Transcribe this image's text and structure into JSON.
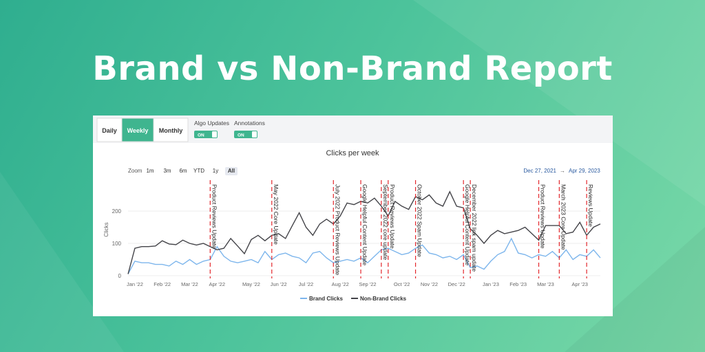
{
  "header": {
    "title": "Brand vs Non-Brand Report"
  },
  "ui": {
    "tabs": [
      "Daily",
      "Weekly",
      "Monthly"
    ],
    "active_tab": 1,
    "toggles": [
      {
        "label": "Algo Updates",
        "state": "ON"
      },
      {
        "label": "Annotations",
        "state": "ON"
      }
    ],
    "zoom_label": "Zoom",
    "zoom_buttons": [
      "1m",
      "3m",
      "6m",
      "YTD",
      "1y",
      "All"
    ],
    "zoom_selected": 5,
    "range_start": "Dec 27, 2021",
    "range_arrow": "→",
    "range_end": "Apr 29, 2023"
  },
  "chart_data": {
    "type": "line",
    "title": "Clicks per week",
    "y_label": "Clicks",
    "categories": [
      null,
      "Jan '22",
      null,
      null,
      null,
      "Feb '22",
      null,
      null,
      null,
      "Mar '22",
      null,
      null,
      null,
      "Apr '22",
      null,
      null,
      null,
      null,
      "May '22",
      null,
      null,
      null,
      "Jun '22",
      null,
      null,
      null,
      "Jul '22",
      null,
      null,
      null,
      null,
      "Aug '22",
      null,
      null,
      null,
      "Sep '22",
      null,
      null,
      null,
      null,
      "Oct '22",
      null,
      null,
      null,
      "Nov '22",
      null,
      null,
      null,
      "Dec '22",
      null,
      null,
      null,
      null,
      "Jan '23",
      null,
      null,
      null,
      "Feb '23",
      null,
      null,
      null,
      "Mar '23",
      null,
      null,
      null,
      null,
      "Apr '23",
      null,
      null,
      null
    ],
    "series": [
      {
        "name": "Brand Clicks",
        "color": "#7cb5ec",
        "values": [
          5,
          45,
          40,
          40,
          35,
          35,
          30,
          45,
          35,
          50,
          35,
          45,
          50,
          90,
          60,
          45,
          40,
          45,
          50,
          40,
          75,
          50,
          65,
          70,
          60,
          55,
          40,
          70,
          75,
          55,
          40,
          45,
          50,
          45,
          55,
          40,
          60,
          80,
          85,
          75,
          65,
          70,
          85,
          95,
          70,
          65,
          55,
          60,
          50,
          65,
          25,
          30,
          20,
          45,
          65,
          75,
          115,
          70,
          65,
          55,
          65,
          60,
          75,
          55,
          80,
          50,
          65,
          60,
          80,
          55
        ]
      },
      {
        "name": "Non-Brand Clicks",
        "color": "#434348",
        "values": [
          5,
          85,
          90,
          90,
          92,
          108,
          98,
          96,
          110,
          100,
          95,
          100,
          90,
          80,
          85,
          115,
          92,
          68,
          112,
          125,
          108,
          125,
          130,
          115,
          155,
          195,
          150,
          125,
          160,
          175,
          160,
          185,
          225,
          220,
          230,
          225,
          240,
          215,
          185,
          230,
          215,
          205,
          245,
          235,
          250,
          225,
          215,
          260,
          215,
          210,
          145,
          125,
          100,
          125,
          140,
          130,
          135,
          140,
          150,
          130,
          110,
          155,
          155,
          155,
          130,
          135,
          165,
          125,
          150,
          160
        ]
      }
    ],
    "annotations": [
      {
        "label": "Product Reviews Update",
        "at": 12
      },
      {
        "label": "May 2022 Core Update",
        "at": 21
      },
      {
        "label": "July 2022 Product Reviews Update",
        "at": 30
      },
      {
        "label": "Google Helpful Content Update",
        "at": 34
      },
      {
        "label": "September 2022 core update",
        "at": 37
      },
      {
        "label": "Product Reviews Update",
        "at": 38
      },
      {
        "label": "October 2022 Spam Update",
        "at": 42
      },
      {
        "label": "Google Helpful Content Update",
        "at": 49
      },
      {
        "label": "December 2022 link spam update",
        "at": 50
      },
      {
        "label": "Product Reviews Update",
        "at": 60
      },
      {
        "label": "March 2023 Core Update",
        "at": 63
      },
      {
        "label": "Reviews Update",
        "at": 67
      }
    ],
    "ylim": [
      0,
      300
    ],
    "yticks": [
      0,
      100,
      200
    ],
    "grid": true,
    "legend": "bottom"
  }
}
